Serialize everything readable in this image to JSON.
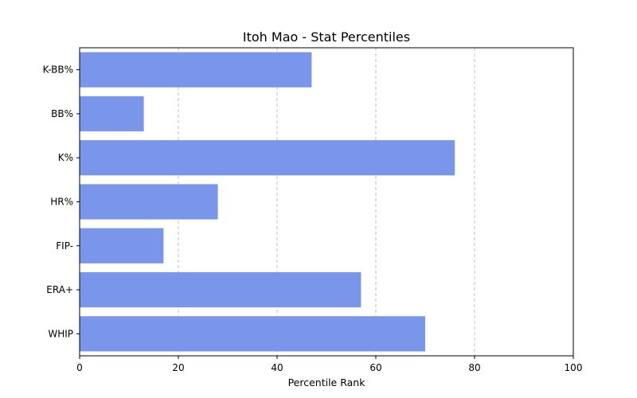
{
  "chart_data": {
    "type": "bar",
    "orientation": "horizontal",
    "title": "Itoh Mao - Stat Percentiles",
    "xlabel": "Percentile Rank",
    "ylabel": "",
    "categories": [
      "K-BB%",
      "BB%",
      "K%",
      "HR%",
      "FIP-",
      "ERA+",
      "WHIP"
    ],
    "values": [
      47,
      13,
      76,
      28,
      17,
      57,
      70
    ],
    "xlim": [
      0,
      100
    ],
    "xticks": [
      "0",
      "20",
      "40",
      "60",
      "80",
      "100"
    ],
    "grid": "x-dashed",
    "bar_color": "#7a96ea"
  }
}
